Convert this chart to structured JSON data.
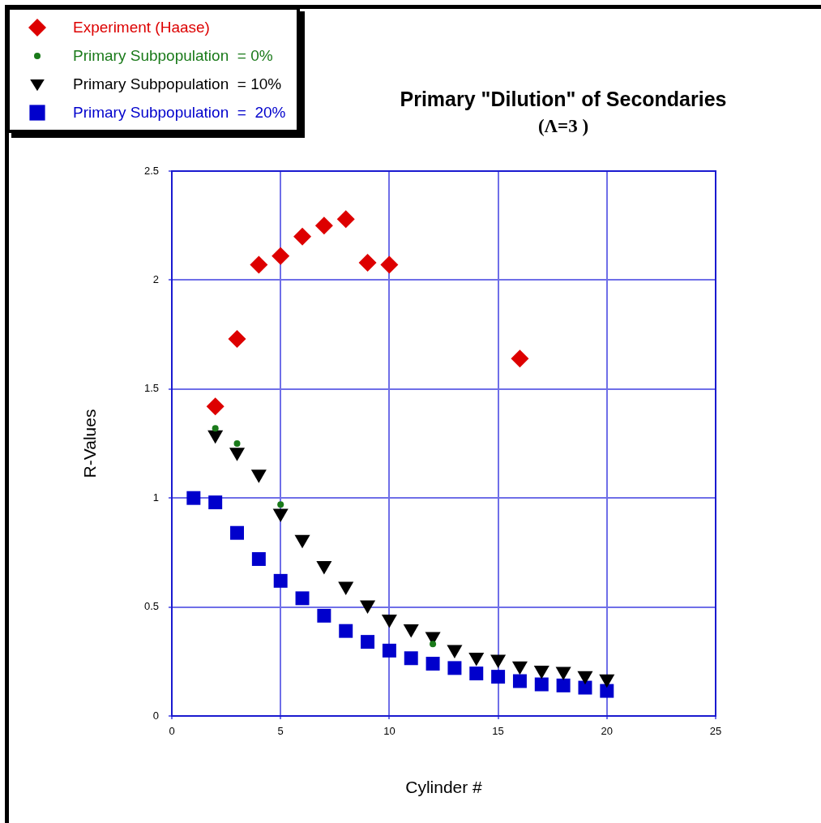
{
  "chart_data": {
    "type": "scatter",
    "title": "Primary \"Dilution\" of Secondaries",
    "subtitle": "(Λ=3 )",
    "xlabel": "Cylinder #",
    "ylabel": "R-Values",
    "xlim": [
      0,
      25
    ],
    "xticks": [
      0,
      5,
      10,
      15,
      20,
      25
    ],
    "ylim": [
      0,
      2.5
    ],
    "yticks": [
      0,
      0.5,
      1,
      1.5,
      2,
      2.5
    ],
    "grid": true,
    "legend": "top left",
    "series": [
      {
        "name": "Experiment (Haase)",
        "color": "#dd0000",
        "marker": "diamond",
        "x": [
          2,
          3,
          4,
          5,
          6,
          7,
          8,
          9,
          10,
          16
        ],
        "values": [
          1.42,
          1.73,
          2.07,
          2.11,
          2.2,
          2.25,
          2.28,
          2.08,
          2.07,
          1.64
        ]
      },
      {
        "name": "Primary Subpopulation  = 0%",
        "color": "#1a7a1a",
        "marker": "circle",
        "x": [
          2,
          3,
          5,
          12
        ],
        "values": [
          1.32,
          1.25,
          0.97,
          0.33
        ]
      },
      {
        "name": "Primary Subpopulation  = 10%",
        "color": "#000000",
        "marker": "triangle",
        "x": [
          2,
          3,
          4,
          5,
          6,
          7,
          8,
          9,
          10,
          11,
          12,
          13,
          14,
          15,
          16,
          17,
          18,
          19,
          20
        ],
        "values": [
          1.29,
          1.21,
          1.11,
          0.93,
          0.81,
          0.69,
          0.595,
          0.51,
          0.445,
          0.4,
          0.365,
          0.305,
          0.27,
          0.26,
          0.23,
          0.21,
          0.205,
          0.185,
          0.17
        ]
      },
      {
        "name": "Primary Subpopulation  =  20%",
        "color": "#0000cc",
        "marker": "square",
        "x": [
          1,
          2,
          3,
          4,
          5,
          6,
          7,
          8,
          9,
          10,
          11,
          12,
          13,
          14,
          15,
          16,
          17,
          18,
          19,
          20
        ],
        "values": [
          1.0,
          0.98,
          0.84,
          0.72,
          0.62,
          0.54,
          0.46,
          0.39,
          0.34,
          0.3,
          0.265,
          0.24,
          0.22,
          0.195,
          0.18,
          0.16,
          0.145,
          0.14,
          0.13,
          0.115
        ]
      }
    ]
  }
}
